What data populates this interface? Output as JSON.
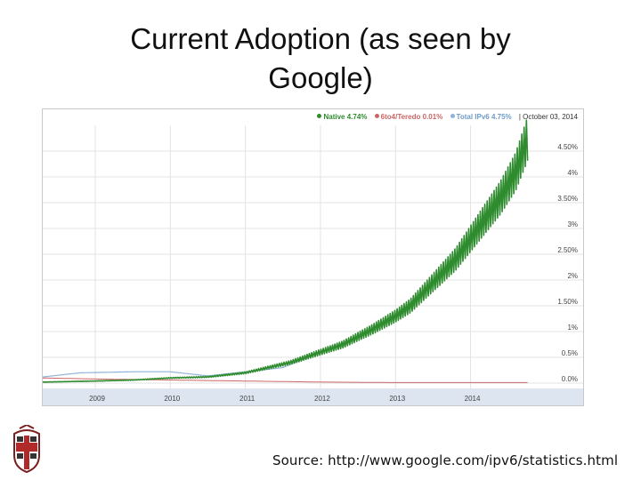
{
  "slide": {
    "title_line1": "Current Adoption (as seen by",
    "title_line2": "Google)",
    "source": "Source: http://www.google.com/ipv6/statistics.html"
  },
  "legend": {
    "native_label": "Native 4.74%",
    "teredo_label": "6to4/Teredo 0.01%",
    "total_label": "Total IPv6 4.75%",
    "date": "| October 03, 2014"
  },
  "colors": {
    "native": "#2e8b2e",
    "teredo": "#cc6666",
    "total": "#8fb3d9",
    "grid": "#e3e3e3",
    "axis_band": "#dde6f0"
  },
  "chart_data": {
    "type": "line",
    "title": "",
    "xlabel": "",
    "ylabel": "",
    "x_ticks": [
      "2009",
      "2010",
      "2011",
      "2012",
      "2013",
      "2014"
    ],
    "x_range": [
      2008.3,
      2014.8
    ],
    "y_ticks": [
      "0.0%",
      "0.5%",
      "1%",
      "1.50%",
      "2%",
      "2.50%",
      "3%",
      "3.50%",
      "4%",
      "4.50%"
    ],
    "ylim": [
      0,
      5.0
    ],
    "grid": true,
    "legend_position": "top-right",
    "series": [
      {
        "name": "Native",
        "x": [
          2008.3,
          2009.0,
          2009.5,
          2010.0,
          2010.5,
          2011.0,
          2011.3,
          2011.6,
          2012.0,
          2012.3,
          2012.5,
          2012.7,
          2013.0,
          2013.2,
          2013.4,
          2013.6,
          2013.8,
          2014.0,
          2014.2,
          2014.4,
          2014.6,
          2014.76
        ],
        "y": [
          0.02,
          0.04,
          0.06,
          0.1,
          0.12,
          0.2,
          0.3,
          0.4,
          0.6,
          0.75,
          0.9,
          1.05,
          1.3,
          1.5,
          1.8,
          2.1,
          2.4,
          2.8,
          3.2,
          3.6,
          4.1,
          4.74
        ]
      },
      {
        "name": "6to4/Teredo",
        "x": [
          2008.3,
          2009.0,
          2010.0,
          2011.0,
          2012.0,
          2013.0,
          2014.0,
          2014.76
        ],
        "y": [
          0.1,
          0.08,
          0.06,
          0.04,
          0.02,
          0.01,
          0.01,
          0.01
        ]
      },
      {
        "name": "Total IPv6",
        "x": [
          2008.3,
          2008.8,
          2009.5,
          2010.0,
          2010.5,
          2011.0,
          2011.5,
          2012.0,
          2012.5,
          2013.0,
          2013.5,
          2014.0,
          2014.5,
          2014.76
        ],
        "y": [
          0.12,
          0.2,
          0.22,
          0.22,
          0.14,
          0.22,
          0.3,
          0.6,
          0.9,
          1.3,
          1.95,
          2.8,
          3.85,
          4.75
        ]
      }
    ]
  }
}
